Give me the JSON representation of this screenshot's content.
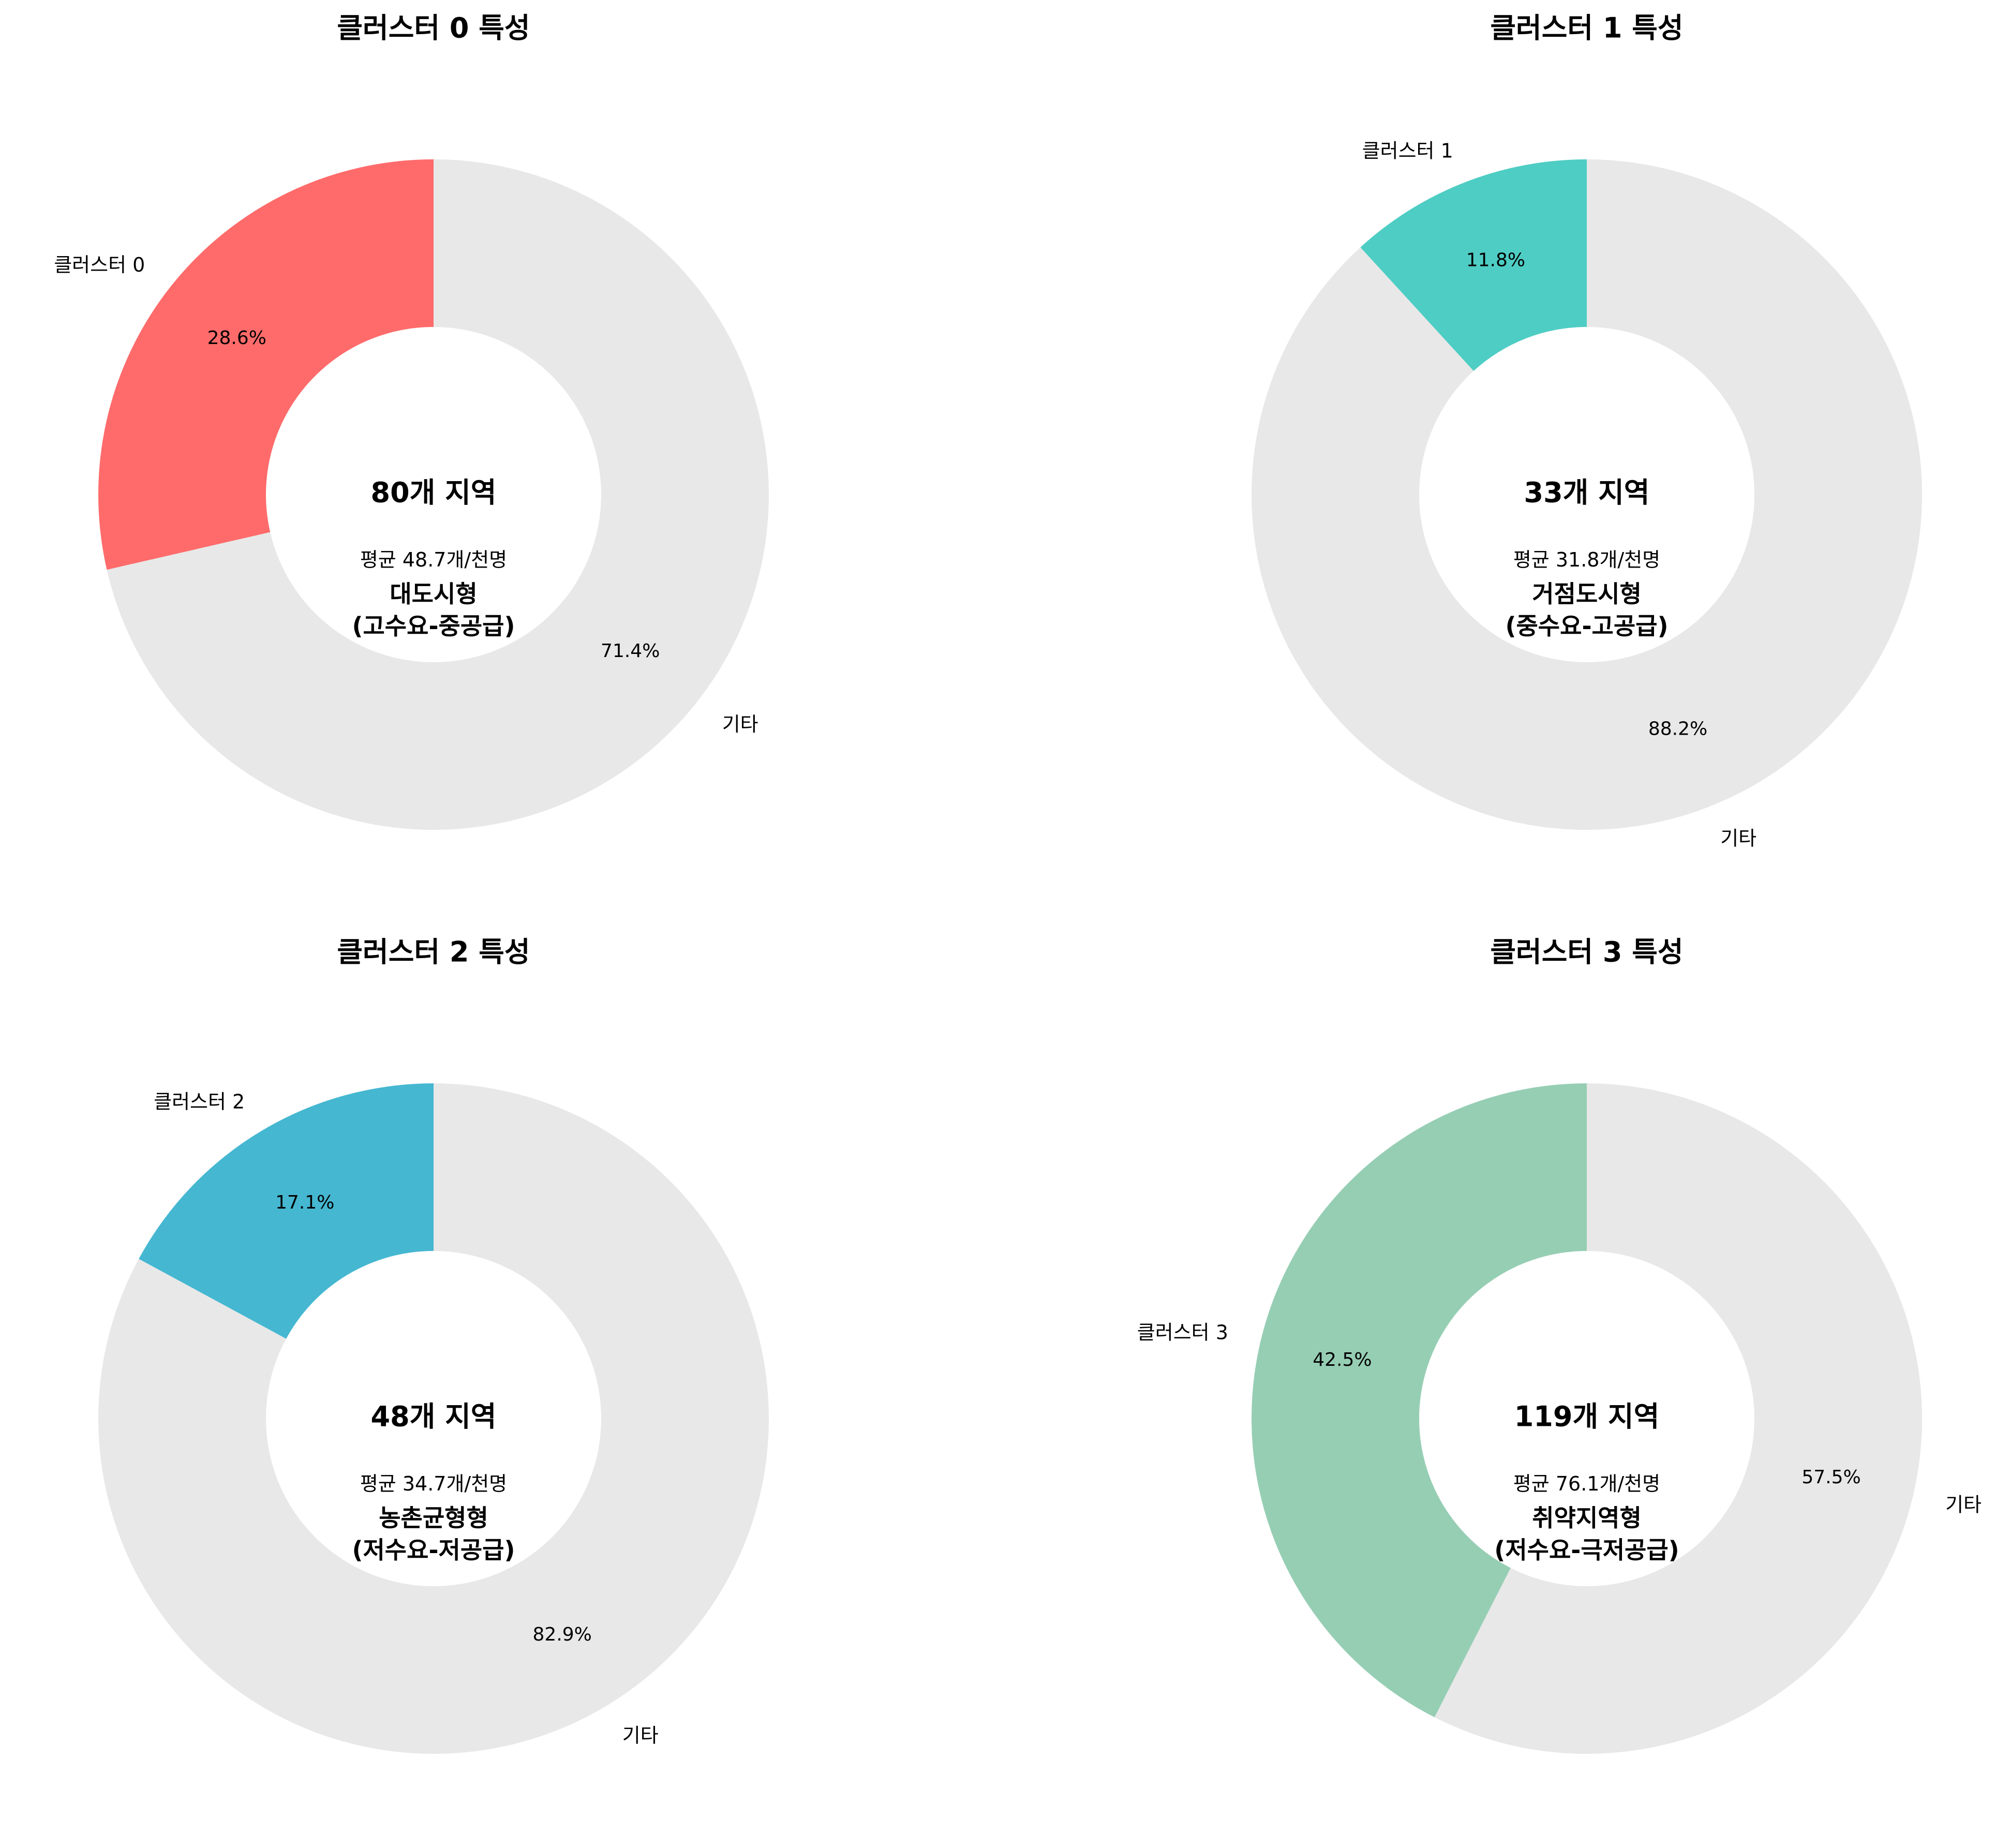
{
  "chart_data": [
    {
      "type": "pie",
      "title": "클러스터 0 특성",
      "slices": [
        {
          "label": "클러스터 0",
          "value": 28.6,
          "pct_label": "28.6%",
          "color": "#FF6B6B"
        },
        {
          "label": "기타",
          "value": 71.4,
          "pct_label": "71.4%",
          "color": "#E8E8E8"
        }
      ],
      "center": {
        "count": "80개 지역",
        "avg": "평균 48.7개/천명",
        "type_line1": "대도시형",
        "type_line2": "(고수요-중공급)"
      }
    },
    {
      "type": "pie",
      "title": "클러스터 1 특성",
      "slices": [
        {
          "label": "클러스터 1",
          "value": 11.8,
          "pct_label": "11.8%",
          "color": "#4ECDC4"
        },
        {
          "label": "기타",
          "value": 88.2,
          "pct_label": "88.2%",
          "color": "#E8E8E8"
        }
      ],
      "center": {
        "count": "33개 지역",
        "avg": "평균 31.8개/천명",
        "type_line1": "거점도시형",
        "type_line2": "(중수요-고공급)"
      }
    },
    {
      "type": "pie",
      "title": "클러스터 2 특성",
      "slices": [
        {
          "label": "클러스터 2",
          "value": 17.1,
          "pct_label": "17.1%",
          "color": "#45B7D1"
        },
        {
          "label": "기타",
          "value": 82.9,
          "pct_label": "82.9%",
          "color": "#E8E8E8"
        }
      ],
      "center": {
        "count": "48개 지역",
        "avg": "평균 34.7개/천명",
        "type_line1": "농촌균형형",
        "type_line2": "(저수요-저공급)"
      }
    },
    {
      "type": "pie",
      "title": "클러스터 3 특성",
      "slices": [
        {
          "label": "클러스터 3",
          "value": 42.5,
          "pct_label": "42.5%",
          "color": "#96CEB4"
        },
        {
          "label": "기타",
          "value": 57.5,
          "pct_label": "57.5%",
          "color": "#E8E8E8"
        }
      ],
      "center": {
        "count": "119개 지역",
        "avg": "평균 76.1개/천명",
        "type_line1": "취약지역형",
        "type_line2": "(저수요-극저공급)"
      }
    }
  ]
}
